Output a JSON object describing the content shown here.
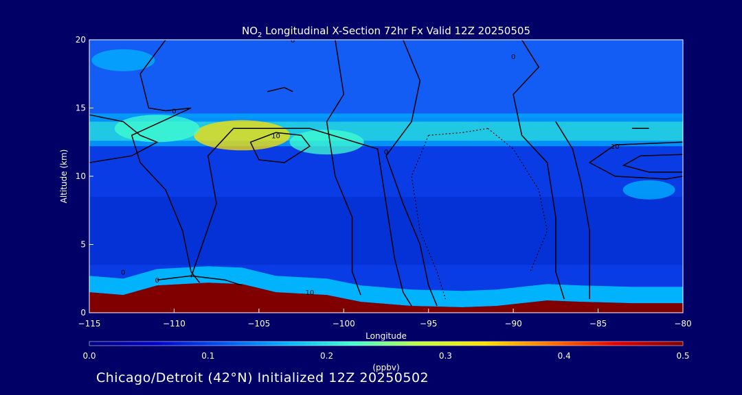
{
  "chart_data": {
    "type": "heatmap",
    "title_main": "NO",
    "title_sub": "2",
    "title_rest": " Longitudinal X-Section 72hr  Fx Valid 12Z 20250505",
    "xlabel": "Longitude",
    "ylabel": "Altitude (km)",
    "xlim": [
      -115,
      -80
    ],
    "ylim": [
      0,
      20
    ],
    "xticks": [
      -115,
      -110,
      -105,
      -100,
      -95,
      -90,
      -85,
      -80
    ],
    "xtick_labels": [
      "−115",
      "−110",
      "−105",
      "−100",
      "−95",
      "−90",
      "−85",
      "−80"
    ],
    "yticks": [
      0,
      5,
      10,
      15,
      20
    ],
    "ytick_labels": [
      "0",
      "5",
      "10",
      "15",
      "20"
    ],
    "colorbar": {
      "min": 0.0,
      "max": 0.5,
      "ticks": [
        0.0,
        0.1,
        0.2,
        0.3,
        0.4,
        0.5
      ],
      "tick_labels": [
        "0.0",
        "0.1",
        "0.2",
        "0.3",
        "0.4",
        "0.5"
      ],
      "unit": "(ppbv)",
      "colors": [
        "#000080",
        "#0000c8",
        "#0050f0",
        "#00b4ff",
        "#40ffd0",
        "#c0ff40",
        "#ffe000",
        "#ff7000",
        "#e00000",
        "#800000"
      ]
    },
    "surface_km": [
      [
        -115,
        1.5
      ],
      [
        -113,
        1.3
      ],
      [
        -111,
        2.0
      ],
      [
        -108,
        2.2
      ],
      [
        -106,
        2.1
      ],
      [
        -104,
        1.5
      ],
      [
        -101,
        1.3
      ],
      [
        -99,
        0.8
      ],
      [
        -96,
        0.5
      ],
      [
        -93,
        0.4
      ],
      [
        -91,
        0.5
      ],
      [
        -88,
        0.9
      ],
      [
        -86,
        0.8
      ],
      [
        -83,
        0.7
      ],
      [
        -80,
        0.7
      ]
    ],
    "no2_features": [
      {
        "lon": -106,
        "alt": 13.0,
        "value": 0.35
      },
      {
        "lon": -111,
        "alt": 13.5,
        "value": 0.22
      },
      {
        "lon": -101,
        "alt": 12.5,
        "value": 0.2
      },
      {
        "lon": -113,
        "alt": 18.5,
        "value": 0.18
      },
      {
        "lon": -82,
        "alt": 9.0,
        "value": 0.14
      }
    ],
    "contour_labels": [
      {
        "text": "0",
        "lon": -103,
        "alt": 20.0
      },
      {
        "text": "0",
        "lon": -110,
        "alt": 14.8
      },
      {
        "text": "10",
        "lon": -104,
        "alt": 13.0
      },
      {
        "text": "0",
        "lon": -97.5,
        "alt": 11.8
      },
      {
        "text": "0",
        "lon": -90,
        "alt": 18.8
      },
      {
        "text": "10",
        "lon": -84,
        "alt": 12.2
      },
      {
        "text": "0",
        "lon": -113,
        "alt": 3.0
      },
      {
        "text": "0",
        "lon": -111,
        "alt": 2.4
      },
      {
        "text": "10",
        "lon": -102,
        "alt": 1.5
      }
    ],
    "contour_lines": [
      [
        [
          -110.5,
          20
        ],
        [
          -112,
          17.5
        ],
        [
          -111.5,
          15
        ],
        [
          -110.5,
          14.8
        ],
        [
          -109,
          15
        ],
        [
          -112.5,
          13
        ],
        [
          -112,
          11
        ],
        [
          -110.5,
          9
        ],
        [
          -109.5,
          6
        ],
        [
          -109,
          3
        ],
        [
          -108.5,
          2.2
        ]
      ],
      [
        [
          -115,
          11
        ],
        [
          -112.5,
          11.5
        ],
        [
          -111,
          12.5
        ],
        [
          -112,
          13
        ],
        [
          -113,
          14
        ],
        [
          -115,
          14.5
        ]
      ],
      [
        [
          -109,
          2.6
        ],
        [
          -107.5,
          8
        ],
        [
          -108,
          11.5
        ],
        [
          -106.5,
          13.5
        ],
        [
          -102,
          13.5
        ],
        [
          -98,
          12
        ],
        [
          -97.5,
          8
        ],
        [
          -97,
          4
        ],
        [
          -96.5,
          1.5
        ],
        [
          -96,
          0.5
        ]
      ],
      [
        [
          -100.5,
          20
        ],
        [
          -100,
          16
        ],
        [
          -101,
          14
        ],
        [
          -100.5,
          10
        ],
        [
          -99.5,
          7
        ],
        [
          -99.5,
          3
        ],
        [
          -99,
          1.3
        ]
      ],
      [
        [
          -105.5,
          12.5
        ],
        [
          -104,
          13.2
        ],
        [
          -102.5,
          13
        ],
        [
          -102,
          12.2
        ],
        [
          -103.5,
          11
        ],
        [
          -105,
          11.2
        ],
        [
          -105.5,
          12.5
        ]
      ],
      [
        [
          -96.5,
          20
        ],
        [
          -95.5,
          17
        ],
        [
          -96,
          14
        ],
        [
          -97.5,
          11.5
        ],
        [
          -96.5,
          8
        ],
        [
          -95.5,
          5
        ],
        [
          -95,
          2
        ],
        [
          -94.5,
          0.5
        ]
      ],
      [
        [
          -89.5,
          20
        ],
        [
          -88.5,
          18
        ],
        [
          -90,
          16
        ],
        [
          -89.5,
          13
        ],
        [
          -88,
          11
        ],
        [
          -87.5,
          7
        ],
        [
          -87.5,
          3
        ],
        [
          -87,
          1
        ]
      ],
      [
        [
          -87.5,
          14
        ],
        [
          -86.5,
          12
        ],
        [
          -86,
          9.5
        ],
        [
          -85.5,
          6
        ],
        [
          -85.5,
          3
        ],
        [
          -85.5,
          1
        ]
      ],
      [
        [
          -80,
          12.5
        ],
        [
          -84,
          12.3
        ],
        [
          -85.5,
          11
        ],
        [
          -84,
          10
        ],
        [
          -81,
          9.8
        ],
        [
          -80,
          10
        ]
      ],
      [
        [
          -80,
          11.6
        ],
        [
          -82.5,
          11.5
        ],
        [
          -83.5,
          10.8
        ],
        [
          -82,
          10.3
        ],
        [
          -80,
          10.3
        ]
      ],
      [
        [
          -83,
          13.5
        ],
        [
          -82,
          13.5
        ]
      ],
      [
        [
          -104.5,
          16.2
        ],
        [
          -103.5,
          16.5
        ],
        [
          -103,
          16.2
        ]
      ],
      [
        [
          -111,
          2.4
        ],
        [
          -109,
          2.7
        ],
        [
          -107,
          2.4
        ],
        [
          -106,
          2.0
        ]
      ]
    ],
    "dotted_lines": [
      [
        [
          -95,
          13
        ],
        [
          -96,
          10
        ],
        [
          -95.5,
          6
        ],
        [
          -94.5,
          3
        ],
        [
          -94,
          1
        ]
      ],
      [
        [
          -91.5,
          13.5
        ],
        [
          -90,
          12
        ],
        [
          -88.5,
          9
        ],
        [
          -88,
          6
        ],
        [
          -89,
          3
        ]
      ],
      [
        [
          -95,
          13
        ],
        [
          -93,
          13.2
        ],
        [
          -91.5,
          13.5
        ]
      ]
    ]
  },
  "caption": "Chicago/Detroit (42°N) Initialized 12Z 20250502"
}
